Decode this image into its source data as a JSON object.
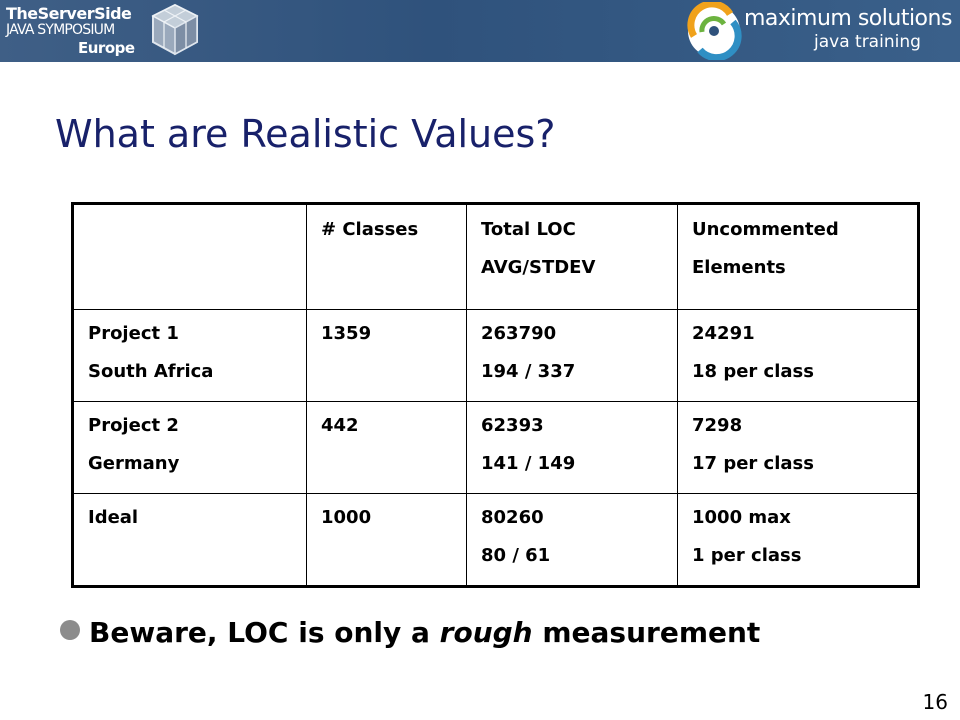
{
  "header": {
    "left_logo": {
      "line1": "TheServerSide",
      "line2": "JAVA SYMPOSIUM",
      "line3": "Europe",
      "icon": "cube-logo-icon"
    },
    "right_logo": {
      "line1": "maximum solutions",
      "line2": "java training",
      "icon": "swirl-logo-icon"
    },
    "background_color": "#2f527c"
  },
  "slide": {
    "title": "What are Realistic Values?",
    "title_color": "#18216a",
    "page_number": "16"
  },
  "table": {
    "header": [
      [
        ""
      ],
      [
        "# Classes"
      ],
      [
        "Total LOC",
        "AVG/STDEV"
      ],
      [
        "Uncommented",
        "Elements"
      ]
    ],
    "rows": [
      [
        [
          "Project 1",
          "South Africa"
        ],
        [
          "1359"
        ],
        [
          "263790",
          "194 / 337"
        ],
        [
          "24291",
          "18 per class"
        ]
      ],
      [
        [
          "Project 2",
          "Germany"
        ],
        [
          "442"
        ],
        [
          "62393",
          "141 / 149"
        ],
        [
          "7298",
          "17 per class"
        ]
      ],
      [
        [
          "Ideal"
        ],
        [
          "1000"
        ],
        [
          "80260",
          "80 / 61"
        ],
        [
          "1000 max",
          "1 per class"
        ]
      ]
    ]
  },
  "bullet": {
    "before": "Beware, LOC is only a ",
    "emphasis": "rough",
    "after": " measurement",
    "icon": "bullet-dot-icon"
  }
}
